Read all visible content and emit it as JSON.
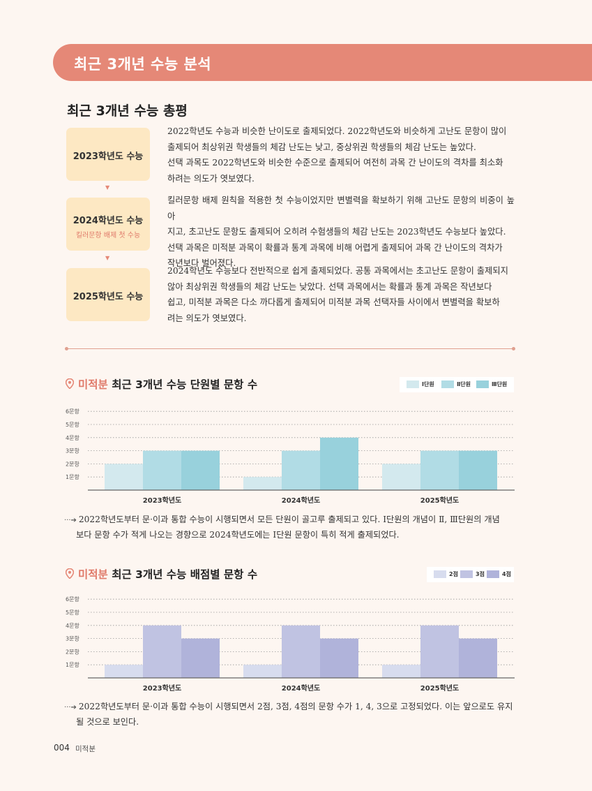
{
  "banner": {
    "title": "최근 3개년 수능 분석"
  },
  "overview": {
    "title": "최근 3개년 수능 총평",
    "years": [
      {
        "label": "2023학년도 수능",
        "sub": "",
        "lines": [
          "2022학년도 수능과 비슷한 난이도로 출제되었다. 2022학년도와 비슷하게 고난도 문항이 많이",
          "출제되어 최상위권 학생들의 체감 난도는 낮고, 중상위권 학생들의 체감 난도는 높았다.",
          "선택 과목도 2022학년도와 비슷한 수준으로 출제되어 여전히 과목 간 난이도의 격차를 최소화",
          "하려는 의도가 엿보였다."
        ]
      },
      {
        "label": "2024학년도 수능",
        "sub": "킬러문항 배제 첫 수능",
        "lines": [
          "킬러문항 배제 원칙을 적용한 첫 수능이었지만 변별력을 확보하기 위해 고난도 문항의 비중이 높아",
          "지고, 초고난도 문항도 출제되어 오히려 수험생들의 체감 난도는 2023학년도 수능보다 높았다.",
          "선택 과목은 미적분 과목이 확률과 통계 과목에 비해 어렵게 출제되어 과목 간 난이도의 격차가",
          "작년보다 벌어졌다."
        ]
      },
      {
        "label": "2025학년도 수능",
        "sub": "",
        "lines": [
          "2024학년도 수능보다 전반적으로 쉽게 출제되었다. 공통 과목에서는 초고난도 문항이 출제되지",
          "않아 최상위권 학생들의 체감 난도는 낮았다. 선택 과목에서는 확률과 통계 과목은 작년보다",
          "쉽고, 미적분 과목은 다소 까다롭게 출제되어 미적분 과목 선택자들 사이에서 변별력을 확보하",
          "려는 의도가 엿보였다."
        ]
      }
    ]
  },
  "chart1": {
    "highlight": "미적분",
    "title": "최근 3개년 수능 단원별 문항 수",
    "note_lines": [
      "2022학년도부터 문·이과 통합 수능이 시행되면서 모든 단원이 골고루 출제되고 있다. Ⅰ단원의 개념이 Ⅱ, Ⅲ단원의 개념",
      "보다 문항 수가 적게 나오는 경향으로 2024학년도에는 Ⅰ단원 문항이 특히 적게 출제되었다."
    ]
  },
  "chart2": {
    "highlight": "미적분",
    "title": "최근 3개년 수능 배점별 문항 수",
    "note_lines": [
      "2022학년도부터 문·이과 통합 수능이 시행되면서 2점, 3점, 4점의 문항 수가 1, 4, 3으로 고정되었다. 이는 앞으로도 유지",
      "될 것으로 보인다."
    ]
  },
  "chart_data": [
    {
      "type": "bar",
      "title": "미적분 최근 3개년 수능 단원별 문항 수",
      "categories": [
        "2023학년도",
        "2024학년도",
        "2025학년도"
      ],
      "y_ticks": [
        "1문항",
        "2문항",
        "3문항",
        "4문항",
        "5문항",
        "6문항"
      ],
      "ylim": [
        0,
        6
      ],
      "grid": true,
      "legend": "top-right",
      "series": [
        {
          "name": "Ⅰ단원",
          "values": [
            2,
            1,
            2
          ],
          "color": "#d3e9ee"
        },
        {
          "name": "Ⅱ단원",
          "values": [
            3,
            3,
            3
          ],
          "color": "#b1dce5"
        },
        {
          "name": "Ⅲ단원",
          "values": [
            3,
            4,
            3
          ],
          "color": "#98d1dc"
        }
      ]
    },
    {
      "type": "bar",
      "title": "미적분 최근 3개년 수능 배점별 문항 수",
      "categories": [
        "2023학년도",
        "2024학년도",
        "2025학년도"
      ],
      "y_ticks": [
        "1문항",
        "2문항",
        "3문항",
        "4문항",
        "5문항",
        "6문항"
      ],
      "ylim": [
        0,
        6
      ],
      "grid": true,
      "legend": "top-right",
      "series": [
        {
          "name": "2점",
          "values": [
            1,
            1,
            1
          ],
          "color": "#d7dcee"
        },
        {
          "name": "3점",
          "values": [
            4,
            4,
            4
          ],
          "color": "#c0c3e2"
        },
        {
          "name": "4점",
          "values": [
            3,
            3,
            3
          ],
          "color": "#b0b3da"
        }
      ]
    }
  ],
  "footer": {
    "page": "004",
    "subject": "미적분"
  }
}
